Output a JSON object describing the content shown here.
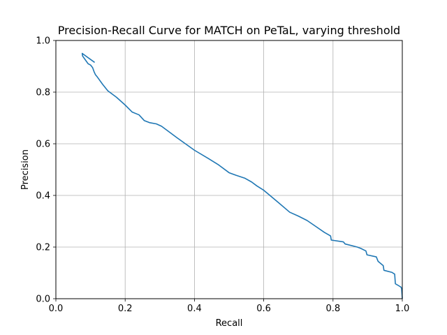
{
  "chart_data": {
    "type": "line",
    "title": "Precision-Recall Curve for MATCH on PeTaL, varying threshold",
    "xlabel": "Recall",
    "ylabel": "Precision",
    "xlim": [
      0,
      1
    ],
    "ylim": [
      0,
      1
    ],
    "grid": true,
    "x_ticks": [
      0,
      0.2,
      0.4,
      0.6,
      0.8,
      1.0
    ],
    "x_tick_labels": [
      "0.0",
      "0.2",
      "0.4",
      "0.6",
      "0.8",
      "1.0"
    ],
    "y_ticks": [
      0,
      0.2,
      0.4,
      0.6,
      0.8,
      1.0
    ],
    "y_tick_labels": [
      "0.0",
      "0.2",
      "0.4",
      "0.6",
      "0.8",
      "1.0"
    ],
    "series": [
      {
        "color": "#1f77b4",
        "x": [
          0.112,
          0.076,
          0.077,
          0.085,
          0.093,
          0.1,
          0.106,
          0.11,
          0.114,
          0.12,
          0.135,
          0.15,
          0.175,
          0.2,
          0.22,
          0.24,
          0.255,
          0.27,
          0.29,
          0.305,
          0.35,
          0.4,
          0.44,
          0.47,
          0.5,
          0.52,
          0.545,
          0.565,
          0.58,
          0.6,
          0.64,
          0.675,
          0.7,
          0.725,
          0.75,
          0.775,
          0.793,
          0.795,
          0.83,
          0.835,
          0.87,
          0.88,
          0.895,
          0.898,
          0.925,
          0.93,
          0.945,
          0.947,
          0.97,
          0.978,
          0.98,
          0.99,
          0.996,
          0.998,
          1.0
        ],
        "y": [
          0.915,
          0.95,
          0.94,
          0.925,
          0.91,
          0.905,
          0.895,
          0.88,
          0.868,
          0.858,
          0.83,
          0.805,
          0.78,
          0.75,
          0.723,
          0.712,
          0.69,
          0.682,
          0.677,
          0.668,
          0.623,
          0.575,
          0.543,
          0.518,
          0.488,
          0.478,
          0.467,
          0.452,
          0.437,
          0.42,
          0.375,
          0.335,
          0.32,
          0.303,
          0.28,
          0.257,
          0.243,
          0.227,
          0.22,
          0.212,
          0.2,
          0.195,
          0.185,
          0.17,
          0.162,
          0.145,
          0.128,
          0.11,
          0.102,
          0.095,
          0.058,
          0.05,
          0.045,
          0.04,
          0.0
        ]
      }
    ]
  }
}
